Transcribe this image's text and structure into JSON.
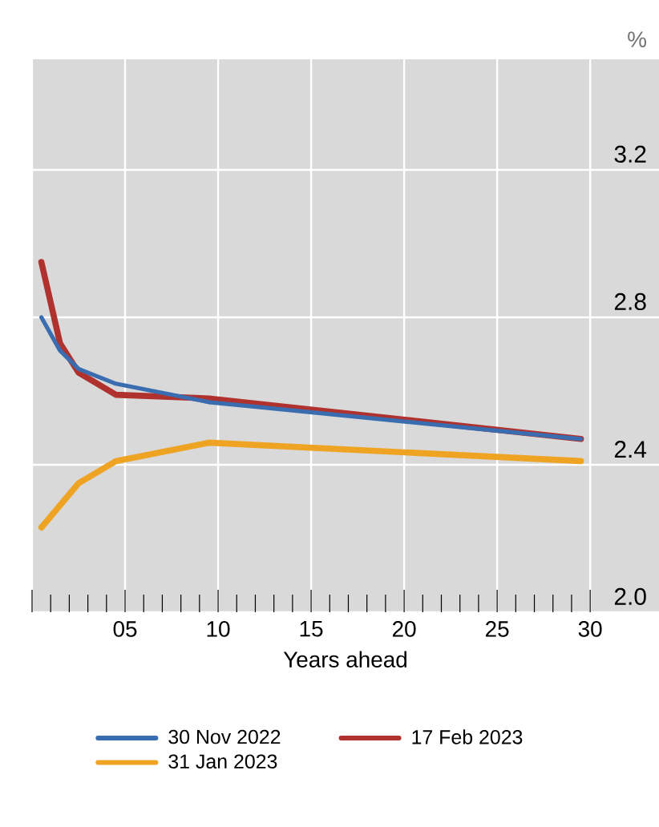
{
  "chart_data": {
    "type": "line",
    "xlabel": "Years ahead",
    "ylabel": "%",
    "xlim": [
      0,
      33.7
    ],
    "ylim": [
      2.0,
      3.5
    ],
    "xticks": [
      {
        "value": 0,
        "label": null
      },
      {
        "value": 5,
        "label": "05"
      },
      {
        "value": 10,
        "label": "10"
      },
      {
        "value": 15,
        "label": "15"
      },
      {
        "value": 20,
        "label": "20"
      },
      {
        "value": 25,
        "label": "25"
      },
      {
        "value": 30,
        "label": "30"
      }
    ],
    "yticks": [
      {
        "value": 2.0,
        "label": "2.0"
      },
      {
        "value": 2.4,
        "label": "2.4"
      },
      {
        "value": 2.8,
        "label": "2.8"
      },
      {
        "value": 3.2,
        "label": "3.2"
      }
    ],
    "grid": true,
    "legend": "bottom",
    "marker": "none",
    "line_style": "solid",
    "series": [
      {
        "name": "30 Nov 2022",
        "color": "#3a6cb0",
        "x": [
          0.5,
          1.5,
          2.5,
          4.5,
          9.5,
          29.5
        ],
        "values": [
          2.8,
          2.71,
          2.66,
          2.62,
          2.57,
          2.47
        ]
      },
      {
        "name": "17 Feb 2023",
        "color": "#b0322e",
        "x": [
          0.5,
          1.5,
          2.5,
          4.5,
          9.5,
          29.5
        ],
        "values": [
          2.95,
          2.73,
          2.65,
          2.59,
          2.58,
          2.47
        ]
      },
      {
        "name": "31 Jan 2023",
        "color": "#efa322",
        "x": [
          0.5,
          2.5,
          4.5,
          9.5,
          29.5
        ],
        "values": [
          2.23,
          2.35,
          2.41,
          2.46,
          2.41
        ]
      }
    ]
  }
}
